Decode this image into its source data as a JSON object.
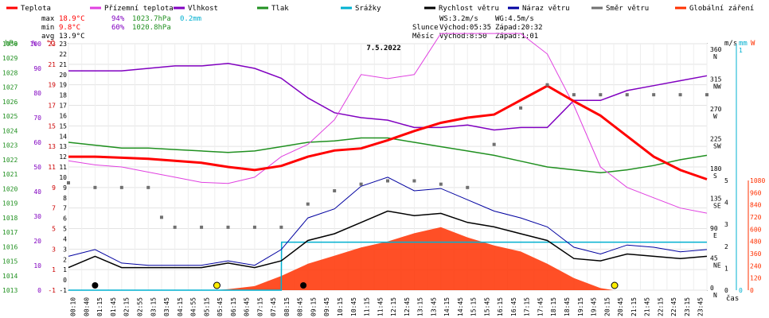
{
  "chart_data": {
    "type": "line",
    "title": "7.5.2022",
    "legend": [
      {
        "label": "Teplota",
        "color": "#ff0000"
      },
      {
        "label": "Přízemní teplota",
        "color": "#e040e0"
      },
      {
        "label": "Vlhkost",
        "color": "#8000c0"
      },
      {
        "label": "Tlak",
        "color": "#209020"
      },
      {
        "label": "Srážky",
        "color": "#00b0d0"
      },
      {
        "label": "Rychlost větru",
        "color": "#000000"
      },
      {
        "label": "Náraz větru",
        "color": "#0000a0"
      },
      {
        "label": "Směr větru",
        "color": "#707070"
      },
      {
        "label": "Globální záření",
        "color": "#ff3000"
      }
    ],
    "stats": {
      "max_label": "max",
      "min_label": "min",
      "avg_label": "avg",
      "max_temp": "18.9°C",
      "max_hum": "94%",
      "max_press": "1023.7hPa",
      "max_rain": "0.2mm",
      "min_temp": "9.8°C",
      "min_hum": "60%",
      "min_press": "1020.8hPa",
      "avg_temp": "13.9°C"
    },
    "wind_stats": {
      "ws": "WS:3.2m/s",
      "wg": "WG:4.5m/s",
      "sun_label": "Slunce",
      "sun_rise": "Východ:05:35",
      "sun_set": "Západ:20:32",
      "moon_label": "Měsíc",
      "moon_rise": "Východ:8:50",
      "moon_set": "Západ:1:01"
    },
    "axes": {
      "hpa_unit": "hPa",
      "pct_unit": "%",
      "temp_unit": "°C",
      "dir_unit": "m/s",
      "mm_unit": "mm",
      "w_unit": "W",
      "x_label": "čas",
      "pressure_ticks": [
        "1030",
        "1029",
        "1028",
        "1027",
        "1026",
        "1025",
        "1024",
        "1023",
        "1022",
        "1021",
        "1020",
        "1019",
        "1018",
        "1017",
        "1016",
        "1015",
        "1014",
        "1013"
      ],
      "humidity_ticks": [
        "100",
        "90",
        "80",
        "70",
        "60",
        "50",
        "40",
        "30",
        "20",
        "10",
        "0"
      ],
      "temp_ticks": [
        "23",
        "21",
        "19",
        "17",
        "15",
        "13",
        "11",
        "9",
        "7",
        "5",
        "3",
        "1",
        "-1"
      ],
      "speed_ticks": [
        "-1",
        "0",
        "1",
        "2",
        "3",
        "4",
        "5",
        "6",
        "7",
        "8",
        "9",
        "10",
        "11",
        "12",
        "13",
        "14",
        "15",
        "16",
        "17",
        "18",
        "19",
        "20",
        "21",
        "22",
        "23"
      ],
      "dir_ticks": [
        {
          "deg": "360",
          "dir": "N"
        },
        {
          "deg": "315",
          "dir": "NW"
        },
        {
          "deg": "270",
          "dir": "W"
        },
        {
          "deg": "225",
          "dir": "SW"
        },
        {
          "deg": "180",
          "dir": "S"
        },
        {
          "deg": "135",
          "dir": "SE"
        },
        {
          "deg": "90",
          "dir": "E"
        },
        {
          "deg": "45",
          "dir": "NE"
        },
        {
          "deg": "0",
          "dir": "N"
        }
      ],
      "wind_ticks": [
        "5",
        "4",
        "3",
        "2",
        "1",
        "0"
      ],
      "rain_ticks": [
        "1",
        "0"
      ],
      "rad_ticks": [
        "1080",
        "960",
        "840",
        "720",
        "600",
        "480",
        "360",
        "240",
        "120",
        "0"
      ],
      "time_ticks": [
        "00:10",
        "00:40",
        "01:15",
        "01:45",
        "02:15",
        "02:55",
        "03:15",
        "03:45",
        "04:15",
        "04:55",
        "05:15",
        "05:45",
        "06:15",
        "06:45",
        "07:15",
        "07:45",
        "08:15",
        "08:45",
        "09:15",
        "09:45",
        "10:15",
        "10:45",
        "11:15",
        "11:45",
        "12:15",
        "12:45",
        "13:15",
        "13:45",
        "14:15",
        "14:45",
        "15:15",
        "15:45",
        "16:15",
        "16:45",
        "17:15",
        "17:45",
        "18:15",
        "18:45",
        "19:15",
        "19:45",
        "20:15",
        "20:45",
        "21:15",
        "21:45",
        "22:15",
        "22:45",
        "23:15",
        "23:45"
      ]
    },
    "series": {
      "temperature": [
        [
          0,
          12
        ],
        [
          1,
          12
        ],
        [
          2,
          11.9
        ],
        [
          3,
          11.8
        ],
        [
          4,
          11.6
        ],
        [
          5,
          11.4
        ],
        [
          6,
          11.0
        ],
        [
          7,
          10.7
        ],
        [
          8,
          11.1
        ],
        [
          9,
          12.0
        ],
        [
          10,
          12.6
        ],
        [
          11,
          12.8
        ],
        [
          12,
          13.6
        ],
        [
          13,
          14.5
        ],
        [
          14,
          15.3
        ],
        [
          15,
          15.8
        ],
        [
          16,
          16.1
        ],
        [
          17,
          17.5
        ],
        [
          18,
          18.9
        ],
        [
          19,
          17.4
        ],
        [
          20,
          16.0
        ],
        [
          21,
          14.0
        ],
        [
          22,
          12.0
        ],
        [
          23,
          10.7
        ],
        [
          24,
          9.8
        ]
      ],
      "ground_temp": [
        [
          0,
          11.6
        ],
        [
          1,
          11.2
        ],
        [
          2,
          11.0
        ],
        [
          3,
          10.5
        ],
        [
          4,
          10.0
        ],
        [
          5,
          9.5
        ],
        [
          6,
          9.4
        ],
        [
          7,
          10.0
        ],
        [
          8,
          12.0
        ],
        [
          9,
          13.2
        ],
        [
          10,
          15.6
        ],
        [
          11,
          20.0
        ],
        [
          12,
          19.6
        ],
        [
          13,
          20.0
        ],
        [
          14,
          24.0
        ],
        [
          15,
          24.0
        ],
        [
          16,
          24.0
        ],
        [
          17,
          24.0
        ],
        [
          18,
          22.0
        ],
        [
          19,
          17.0
        ],
        [
          20,
          11.0
        ],
        [
          21,
          9.0
        ],
        [
          22,
          8.0
        ],
        [
          23,
          7.0
        ],
        [
          24,
          6.5
        ]
      ],
      "humidity": [
        [
          0,
          89
        ],
        [
          1,
          89
        ],
        [
          2,
          89
        ],
        [
          3,
          90
        ],
        [
          4,
          91
        ],
        [
          5,
          91
        ],
        [
          6,
          92
        ],
        [
          7,
          90
        ],
        [
          8,
          86
        ],
        [
          9,
          78
        ],
        [
          10,
          72
        ],
        [
          11,
          70
        ],
        [
          12,
          69
        ],
        [
          13,
          66
        ],
        [
          14,
          66
        ],
        [
          15,
          67
        ],
        [
          16,
          65
        ],
        [
          17,
          66
        ],
        [
          18,
          66
        ],
        [
          19,
          77
        ],
        [
          20,
          77
        ],
        [
          21,
          81
        ],
        [
          22,
          83
        ],
        [
          23,
          85
        ],
        [
          24,
          87
        ]
      ],
      "pressure": [
        [
          0,
          1023.2
        ],
        [
          1,
          1023.0
        ],
        [
          2,
          1022.8
        ],
        [
          3,
          1022.8
        ],
        [
          4,
          1022.7
        ],
        [
          5,
          1022.6
        ],
        [
          6,
          1022.5
        ],
        [
          7,
          1022.6
        ],
        [
          8,
          1022.9
        ],
        [
          9,
          1023.2
        ],
        [
          10,
          1023.3
        ],
        [
          11,
          1023.5
        ],
        [
          12,
          1023.5
        ],
        [
          13,
          1023.2
        ],
        [
          14,
          1022.9
        ],
        [
          15,
          1022.6
        ],
        [
          16,
          1022.3
        ],
        [
          17,
          1021.9
        ],
        [
          18,
          1021.5
        ],
        [
          19,
          1021.3
        ],
        [
          20,
          1021.1
        ],
        [
          21,
          1021.3
        ],
        [
          22,
          1021.6
        ],
        [
          23,
          1022.0
        ],
        [
          24,
          1022.3
        ]
      ],
      "wind_dir": [
        [
          0,
          162
        ],
        [
          1,
          155
        ],
        [
          2,
          155
        ],
        [
          3,
          155
        ],
        [
          3.5,
          110
        ],
        [
          4,
          95
        ],
        [
          5,
          95
        ],
        [
          6,
          95
        ],
        [
          7,
          95
        ],
        [
          8,
          95
        ],
        [
          9,
          130
        ],
        [
          10,
          150
        ],
        [
          11,
          160
        ],
        [
          12,
          165
        ],
        [
          13,
          165
        ],
        [
          14,
          160
        ],
        [
          15,
          155
        ],
        [
          16,
          220
        ],
        [
          17,
          275
        ],
        [
          18,
          310
        ],
        [
          19,
          295
        ],
        [
          20,
          295
        ],
        [
          21,
          295
        ],
        [
          22,
          295
        ],
        [
          23,
          295
        ],
        [
          24,
          295
        ]
      ],
      "wind_speed": [
        [
          0,
          0
        ],
        [
          1,
          0.5
        ],
        [
          2,
          0
        ],
        [
          3,
          0
        ],
        [
          4,
          0
        ],
        [
          5,
          0
        ],
        [
          6,
          0.2
        ],
        [
          7,
          0
        ],
        [
          8,
          0.3
        ],
        [
          9,
          1.2
        ],
        [
          10,
          1.5
        ],
        [
          11,
          2.0
        ],
        [
          12,
          2.5
        ],
        [
          13,
          2.3
        ],
        [
          14,
          2.4
        ],
        [
          15,
          2.0
        ],
        [
          16,
          1.8
        ],
        [
          17,
          1.5
        ],
        [
          18,
          1.2
        ],
        [
          19,
          0.4
        ],
        [
          20,
          0.3
        ],
        [
          21,
          0.6
        ],
        [
          22,
          0.5
        ],
        [
          23,
          0.4
        ],
        [
          24,
          0.5
        ]
      ],
      "wind_gust": [
        [
          0,
          0.5
        ],
        [
          1,
          0.8
        ],
        [
          2,
          0.2
        ],
        [
          3,
          0.1
        ],
        [
          4,
          0.1
        ],
        [
          5,
          0.1
        ],
        [
          6,
          0.3
        ],
        [
          7,
          0.1
        ],
        [
          8,
          0.8
        ],
        [
          9,
          2.2
        ],
        [
          10,
          2.6
        ],
        [
          11,
          3.6
        ],
        [
          12,
          4.0
        ],
        [
          13,
          3.4
        ],
        [
          14,
          3.5
        ],
        [
          15,
          3.0
        ],
        [
          16,
          2.5
        ],
        [
          17,
          2.2
        ],
        [
          18,
          1.8
        ],
        [
          19,
          0.9
        ],
        [
          20,
          0.6
        ],
        [
          21,
          1.0
        ],
        [
          22,
          0.9
        ],
        [
          23,
          0.7
        ],
        [
          24,
          0.8
        ]
      ],
      "rain": [
        [
          0,
          0
        ],
        [
          8,
          0
        ],
        [
          8.01,
          0.2
        ],
        [
          24,
          0.2
        ]
      ],
      "radiation": [
        [
          0,
          0
        ],
        [
          5.5,
          0
        ],
        [
          6,
          10
        ],
        [
          7,
          40
        ],
        [
          8,
          140
        ],
        [
          9,
          260
        ],
        [
          10,
          340
        ],
        [
          11,
          420
        ],
        [
          12,
          480
        ],
        [
          13,
          560
        ],
        [
          14,
          620
        ],
        [
          15,
          520
        ],
        [
          16,
          440
        ],
        [
          17,
          380
        ],
        [
          18,
          260
        ],
        [
          19,
          120
        ],
        [
          20,
          20
        ],
        [
          20.5,
          0
        ],
        [
          24,
          0
        ]
      ]
    }
  }
}
